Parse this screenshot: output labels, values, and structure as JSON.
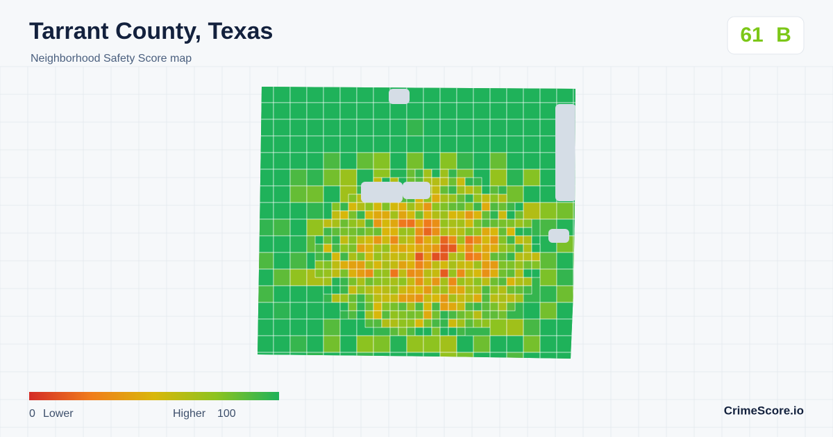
{
  "header": {
    "title": "Tarrant County, Texas",
    "subtitle": "Neighborhood Safety Score map"
  },
  "badge": {
    "score": 61,
    "grade": "B"
  },
  "legend": {
    "min": 0,
    "min_label": "Lower",
    "max": 100,
    "max_label": "Higher",
    "colors": [
      "#d42c27",
      "#f07d1b",
      "#d9b70a",
      "#8cc320",
      "#1fb25a"
    ]
  },
  "brand": "CrimeScore.io"
}
